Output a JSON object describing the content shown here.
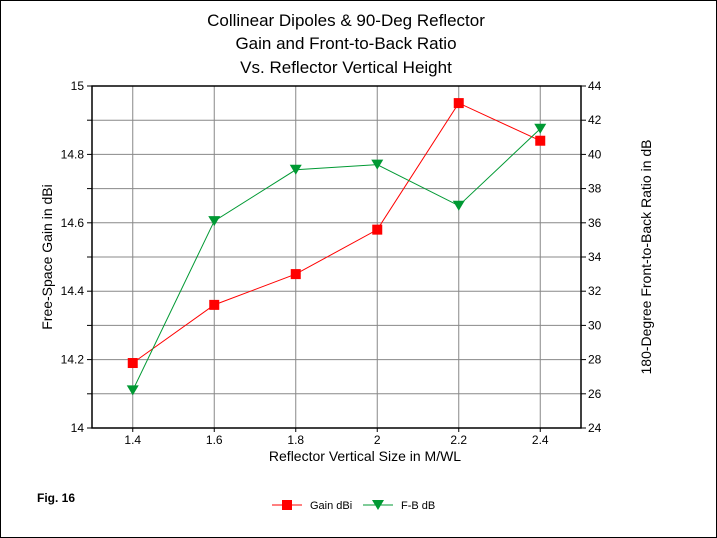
{
  "chart_data": {
    "type": "line",
    "title": [
      "Collinear Dipoles & 90-Deg Reflector",
      "Gain and Front-to-Back Ratio",
      "Vs. Reflector Vertical Height"
    ],
    "xlabel": "Reflector Vertical Size in M/WL",
    "ylabel_left": "Free-Space Gain in dBi",
    "ylabel_right": "180-Degree Front-to-Back Ratio in dB",
    "x": [
      1.4,
      1.6,
      1.8,
      2.0,
      2.2,
      2.4
    ],
    "x_tick_labels": [
      "1.4",
      "1.6",
      "1.8",
      "2",
      "2.2",
      "2.4"
    ],
    "xlim": [
      1.3,
      2.5
    ],
    "ylim_left": [
      14,
      15
    ],
    "ylim_right": [
      24,
      44
    ],
    "y_left_tick_labels": [
      "14",
      "14.2",
      "14.4",
      "14.6",
      "14.8",
      "15"
    ],
    "y_right_tick_labels": [
      "24",
      "26",
      "28",
      "30",
      "32",
      "34",
      "36",
      "38",
      "40",
      "42",
      "44"
    ],
    "grid": true,
    "legend_position": "bottom",
    "series": [
      {
        "name": "Gain dBi",
        "axis": "left",
        "color": "#ff0000",
        "marker": "square",
        "values": [
          14.19,
          14.36,
          14.45,
          14.58,
          14.95,
          14.84
        ]
      },
      {
        "name": "F-B dB",
        "axis": "right",
        "color": "#009933",
        "marker": "triangle-down",
        "values": [
          26.2,
          36.1,
          39.1,
          39.4,
          37.0,
          41.5
        ]
      }
    ]
  },
  "figure_label": "Fig. 16"
}
